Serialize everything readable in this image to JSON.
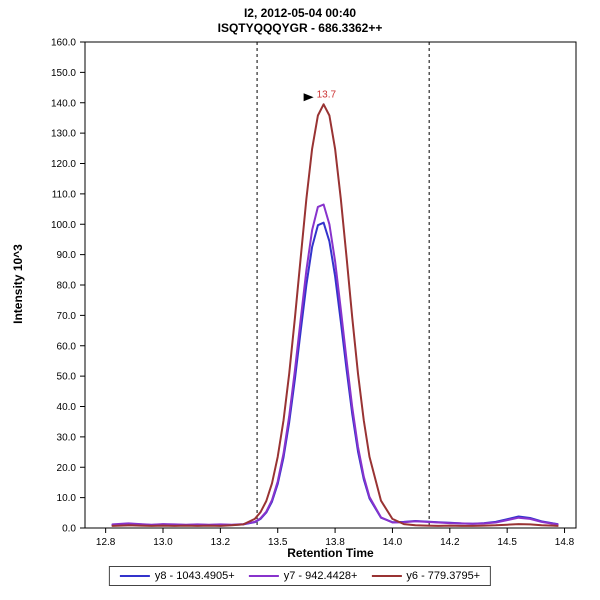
{
  "chart_data": {
    "type": "line",
    "title": "I2, 2012-05-04 00:40",
    "subtitle": "ISQTYQQQYGR - 686.3362++",
    "xlabel": "Retention Time",
    "ylabel": "Intensity 10^3",
    "xlim": [
      12.66,
      14.8
    ],
    "ylim": [
      0,
      160
    ],
    "grid": false,
    "legend_position": "bottom",
    "x_ticks": [
      {
        "value": 12.75,
        "label": "12.8"
      },
      {
        "value": 13.0,
        "label": "13.0"
      },
      {
        "value": 13.25,
        "label": "13.2"
      },
      {
        "value": 13.5,
        "label": "13.5"
      },
      {
        "value": 13.75,
        "label": "13.8"
      },
      {
        "value": 14.0,
        "label": "14.0"
      },
      {
        "value": 14.25,
        "label": "14.2"
      },
      {
        "value": 14.5,
        "label": "14.5"
      },
      {
        "value": 14.75,
        "label": "14.8"
      }
    ],
    "y_ticks": [
      {
        "value": 0,
        "label": "0.0"
      },
      {
        "value": 10,
        "label": "10.0"
      },
      {
        "value": 20,
        "label": "20.0"
      },
      {
        "value": 30,
        "label": "30.0"
      },
      {
        "value": 40,
        "label": "40.0"
      },
      {
        "value": 50,
        "label": "50.0"
      },
      {
        "value": 60,
        "label": "60.0"
      },
      {
        "value": 70,
        "label": "70.0"
      },
      {
        "value": 80,
        "label": "80.0"
      },
      {
        "value": 90,
        "label": "90.0"
      },
      {
        "value": 100,
        "label": "100.0"
      },
      {
        "value": 110,
        "label": "110.0"
      },
      {
        "value": 120,
        "label": "120.0"
      },
      {
        "value": 130,
        "label": "130.0"
      },
      {
        "value": 140,
        "label": "140.0"
      },
      {
        "value": 150,
        "label": "150.0"
      },
      {
        "value": 160,
        "label": "160.0"
      }
    ],
    "integration_boundaries": [
      13.41,
      14.16
    ],
    "annotations": [
      {
        "text": "13.7",
        "x": 13.7,
        "y": 139.5,
        "color": "#cc3333",
        "marker": "black-right-arrow"
      }
    ],
    "x": [
      12.78,
      12.85,
      12.9,
      12.95,
      13.0,
      13.05,
      13.1,
      13.15,
      13.2,
      13.25,
      13.3,
      13.35,
      13.4,
      13.425,
      13.45,
      13.475,
      13.5,
      13.525,
      13.55,
      13.575,
      13.6,
      13.625,
      13.65,
      13.675,
      13.7,
      13.725,
      13.75,
      13.775,
      13.8,
      13.825,
      13.85,
      13.875,
      13.9,
      13.95,
      14.0,
      14.05,
      14.1,
      14.15,
      14.2,
      14.25,
      14.3,
      14.35,
      14.4,
      14.45,
      14.5,
      14.55,
      14.6,
      14.65,
      14.7,
      14.72
    ],
    "series": [
      {
        "name": "y8 - 1043.4905+",
        "color": "#3333cc",
        "values": [
          1.0,
          1.4,
          1.2,
          1.0,
          1.2,
          1.1,
          1.0,
          1.1,
          1.0,
          1.1,
          1.0,
          1.2,
          1.9,
          3.0,
          5.1,
          8.7,
          14.5,
          23.2,
          34.8,
          49.0,
          64.9,
          80.1,
          92.5,
          99.7,
          100.5,
          94.4,
          82.9,
          68.0,
          52.1,
          37.4,
          25.2,
          16.0,
          9.7,
          3.4,
          1.9,
          2.0,
          2.3,
          2.1,
          1.9,
          1.7,
          1.5,
          1.4,
          1.6,
          2.0,
          2.9,
          3.8,
          3.3,
          2.2,
          1.5,
          1.3
        ]
      },
      {
        "name": "y7 - 942.4428+",
        "color": "#8833cc",
        "values": [
          1.2,
          1.5,
          1.3,
          1.1,
          1.3,
          1.2,
          1.1,
          1.2,
          1.1,
          1.2,
          1.1,
          1.3,
          2.0,
          3.2,
          5.4,
          9.2,
          15.3,
          24.5,
          36.8,
          51.9,
          68.7,
          84.9,
          98.0,
          105.7,
          106.5,
          100.0,
          87.8,
          72.0,
          55.2,
          39.6,
          26.7,
          16.9,
          10.2,
          3.5,
          1.8,
          1.9,
          2.2,
          2.0,
          1.8,
          1.6,
          1.5,
          1.4,
          1.5,
          1.8,
          2.6,
          3.4,
          3.0,
          2.0,
          1.4,
          1.2
        ]
      },
      {
        "name": "y6 - 779.3795+",
        "color": "#993333",
        "values": [
          0.7,
          0.9,
          0.8,
          0.7,
          0.8,
          0.7,
          0.8,
          0.7,
          0.8,
          0.7,
          0.9,
          1.2,
          3.0,
          5.2,
          8.9,
          14.7,
          23.4,
          35.4,
          50.8,
          69.1,
          89.0,
          108.4,
          124.8,
          135.8,
          139.5,
          135.8,
          124.8,
          108.4,
          89.0,
          69.1,
          50.8,
          35.4,
          23.4,
          9.0,
          3.0,
          1.3,
          0.9,
          0.8,
          0.7,
          0.8,
          0.7,
          0.7,
          0.8,
          0.9,
          1.1,
          1.3,
          1.2,
          0.9,
          0.8,
          0.7
        ]
      }
    ]
  }
}
